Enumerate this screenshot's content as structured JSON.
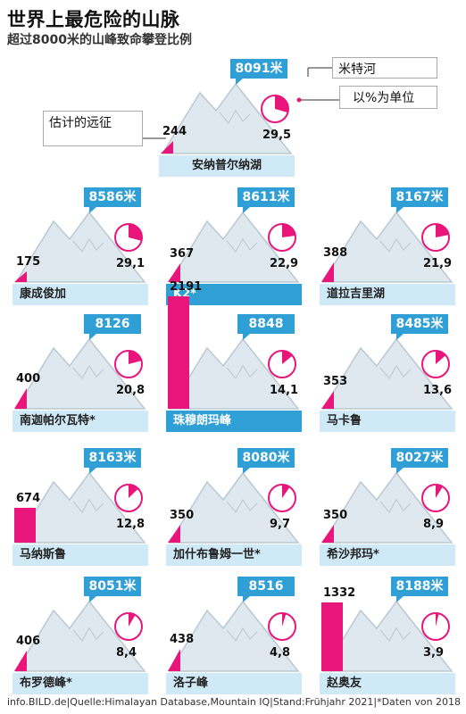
{
  "header": {
    "title": "世界上最危险的山脉",
    "subtitle": "超过8000米的山峰致命攀登比例"
  },
  "legend": {
    "river": "米特河",
    "percent": "以%为单位",
    "estimate": "估计的远征"
  },
  "footer": "info.BILD.de|Quelle:Himalayan Database,Mountain IQ|Stand:Frühjahr 2021|*Daten von 2018",
  "colors": {
    "accent": "#2f9fd6",
    "magenta": "#e8157a",
    "plate": "#cfe9f7",
    "mountain": "#dfe8ee"
  },
  "chart_data": {
    "type": "table",
    "title": "世界上最危险的山脉",
    "subtitle": "超过8000米的山峰致命攀登比例",
    "columns": [
      "name",
      "elevation",
      "expeditions",
      "death_rate_percent"
    ],
    "peaks": [
      {
        "name": "安纳普尔纳湖",
        "elevation": "8091米",
        "expeditions": 244,
        "rate": "29,5",
        "rate_value": 29.5
      },
      {
        "name": "康成俊加",
        "elevation": "8586米",
        "expeditions": 175,
        "rate": "29,1",
        "rate_value": 29.1
      },
      {
        "name": "K2*",
        "elevation": "8611米",
        "expeditions": 367,
        "rate": "22,9",
        "rate_value": 22.9
      },
      {
        "name": "道拉吉里湖",
        "elevation": "8167米",
        "expeditions": 388,
        "rate": "21,9",
        "rate_value": 21.9
      },
      {
        "name": "南迦帕尔瓦特*",
        "elevation": "8126",
        "expeditions": 400,
        "rate": "20,8",
        "rate_value": 20.8
      },
      {
        "name": "珠穆朗玛峰",
        "elevation": "8848",
        "expeditions": 2191,
        "rate": "14,1",
        "rate_value": 14.1
      },
      {
        "name": "马卡鲁",
        "elevation": "8485米",
        "expeditions": 353,
        "rate": "13,6",
        "rate_value": 13.6
      },
      {
        "name": "马纳斯鲁",
        "elevation": "8163米",
        "expeditions": 674,
        "rate": "12,8",
        "rate_value": 12.8
      },
      {
        "name": "加什布鲁姆一世*",
        "elevation": "8080米",
        "expeditions": 350,
        "rate": "9,7",
        "rate_value": 9.7
      },
      {
        "name": "希沙邦玛*",
        "elevation": "8027米",
        "expeditions": 350,
        "rate": "8,9",
        "rate_value": 8.9
      },
      {
        "name": "布罗德峰*",
        "elevation": "8051米",
        "expeditions": 406,
        "rate": "8,4",
        "rate_value": 8.4
      },
      {
        "name": "洛子峰",
        "elevation": "8516",
        "expeditions": 438,
        "rate": "4,8",
        "rate_value": 4.8
      },
      {
        "name": "赵奥友",
        "elevation": "8188米",
        "expeditions": 1332,
        "rate": "3,9",
        "rate_value": 3.9
      }
    ]
  }
}
